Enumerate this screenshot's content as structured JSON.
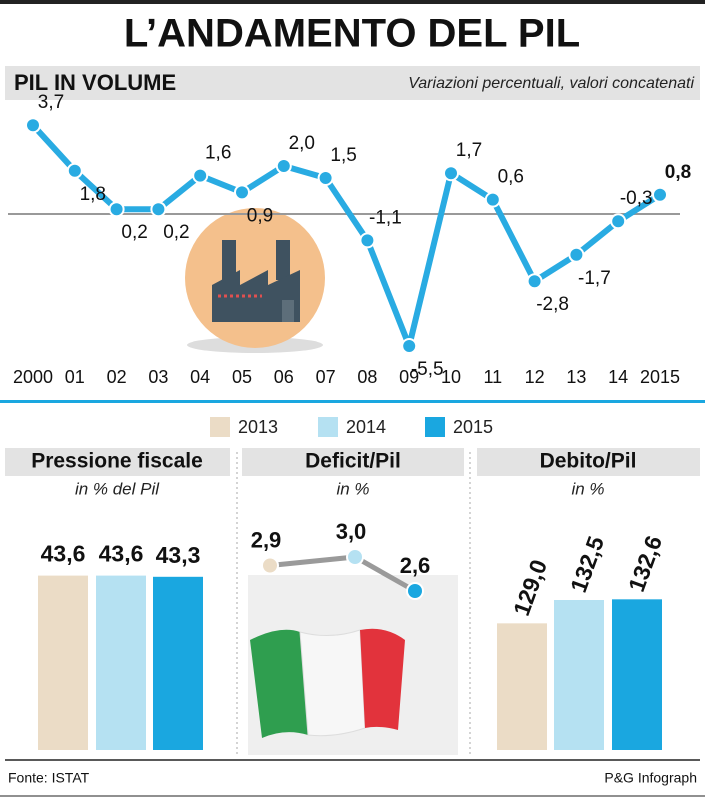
{
  "title": "L’ANDAMENTO DEL PIL",
  "source": "Fonte: ISTAT",
  "credit": "P&G Infograph",
  "chart_data": [
    {
      "type": "line",
      "title": "PIL IN VOLUME",
      "subtitle": "Variazioni percentuali, valori concatenati",
      "categories": [
        "2000",
        "01",
        "02",
        "03",
        "04",
        "05",
        "06",
        "07",
        "08",
        "09",
        "10",
        "11",
        "12",
        "13",
        "14",
        "2015"
      ],
      "values": [
        3.7,
        1.8,
        0.2,
        0.2,
        1.6,
        0.9,
        2.0,
        1.5,
        -1.1,
        -5.5,
        1.7,
        0.6,
        -2.8,
        -1.7,
        -0.3,
        0.8
      ],
      "value_labels": [
        "3,7",
        "1,8",
        "0,2",
        "0,2",
        "1,6",
        "0,9",
        "2,0",
        "1,5",
        "-1,1",
        "-5,5",
        "1,7",
        "0,6",
        "-2,8",
        "-1,7",
        "-0,3",
        "0,8"
      ],
      "color": "#29abe2",
      "ylim": [
        -6,
        4.5
      ]
    },
    {
      "type": "bar",
      "title": "Pressione fiscale",
      "subtitle": "in % del Pil",
      "categories": [
        "2013",
        "2014",
        "2015"
      ],
      "values": [
        43.6,
        43.6,
        43.3
      ],
      "value_labels": [
        "43,6",
        "43,6",
        "43,3"
      ],
      "colors": [
        "#ebdcc6",
        "#b5e1f2",
        "#1aa7e0"
      ],
      "ylim": [
        0,
        50
      ]
    },
    {
      "type": "line",
      "title": "Deficit/Pil",
      "subtitle": "in %",
      "categories": [
        "2013",
        "2014",
        "2015"
      ],
      "values": [
        2.9,
        3.0,
        2.6
      ],
      "value_labels": [
        "2,9",
        "3,0",
        "2,6"
      ],
      "colors": [
        "#ebdcc6",
        "#b5e1f2",
        "#1aa7e0"
      ],
      "ylim": [
        2,
        3.2
      ]
    },
    {
      "type": "bar",
      "title": "Debito/Pil",
      "subtitle": "in %",
      "categories": [
        "2013",
        "2014",
        "2015"
      ],
      "values": [
        129.0,
        132.5,
        132.6
      ],
      "value_labels": [
        "129,0",
        "132,5",
        "132,6"
      ],
      "colors": [
        "#ebdcc6",
        "#b5e1f2",
        "#1aa7e0"
      ],
      "ylim": [
        110,
        140
      ]
    }
  ]
}
